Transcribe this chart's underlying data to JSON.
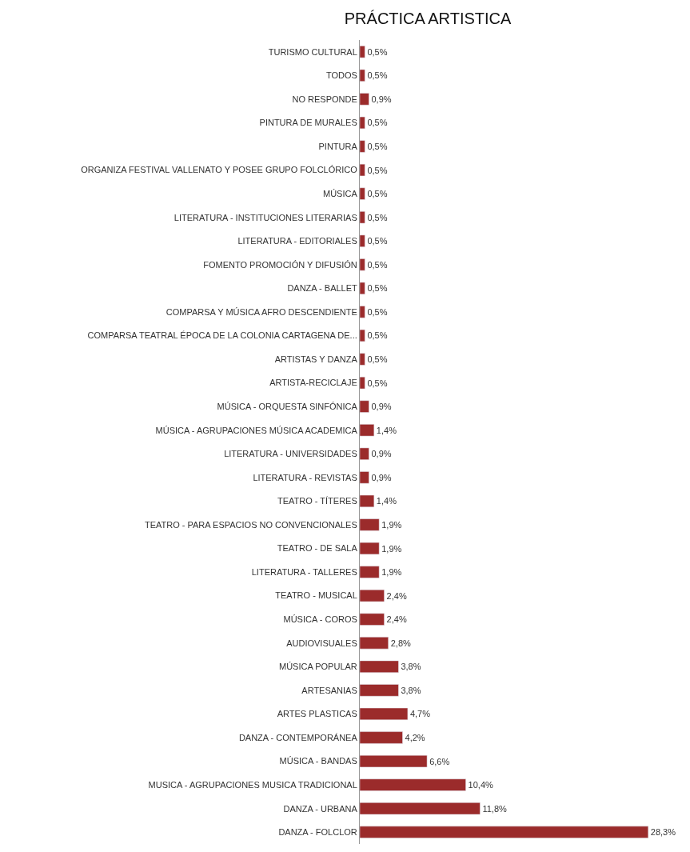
{
  "chart_data": {
    "type": "bar",
    "orientation": "horizontal",
    "title": "PRÁCTICA ARTISTICA",
    "categories": [
      "TURISMO CULTURAL",
      "TODOS",
      "NO RESPONDE",
      "PINTURA DE MURALES",
      "PINTURA",
      "ORGANIZA FESTIVAL VALLENATO Y POSEE GRUPO FOLCLÓRICO",
      "MÚSICA",
      "LITERATURA - INSTITUCIONES LITERARIAS",
      "LITERATURA - EDITORIALES",
      "FOMENTO PROMOCIÓN Y DIFUSIÓN",
      "DANZA - BALLET",
      "COMPARSA Y MÚSICA AFRO DESCENDIENTE",
      "COMPARSA TEATRAL ÉPOCA DE LA COLONIA CARTAGENA DE...",
      "ARTISTAS Y DANZA",
      "ARTISTA-RECICLAJE",
      "MÚSICA - ORQUESTA SINFÓNICA",
      "MÚSICA - AGRUPACIONES MÚSICA ACADEMICA",
      "LITERATURA - UNIVERSIDADES",
      "LITERATURA - REVISTAS",
      "TEATRO - TÍTERES",
      "TEATRO - PARA ESPACIOS NO CONVENCIONALES",
      "TEATRO - DE SALA",
      "LITERATURA - TALLERES",
      "TEATRO - MUSICAL",
      "MÚSICA - COROS",
      "AUDIOVISUALES",
      "MÚSICA POPULAR",
      "ARTESANIAS",
      "ARTES PLASTICAS",
      "DANZA - CONTEMPORÁNEA",
      "MÚSICA - BANDAS",
      "MUSICA - AGRUPACIONES MUSICA TRADICIONAL",
      "DANZA - URBANA",
      "DANZA - FOLCLOR"
    ],
    "values": [
      0.5,
      0.5,
      0.9,
      0.5,
      0.5,
      0.5,
      0.5,
      0.5,
      0.5,
      0.5,
      0.5,
      0.5,
      0.5,
      0.5,
      0.5,
      0.9,
      1.4,
      0.9,
      0.9,
      1.4,
      1.9,
      1.9,
      1.9,
      2.4,
      2.4,
      2.8,
      3.8,
      3.8,
      4.7,
      4.2,
      6.6,
      10.4,
      11.8,
      28.3
    ],
    "value_labels": [
      "0,5%",
      "0,5%",
      "0,9%",
      "0,5%",
      "0,5%",
      "0,5%",
      "0,5%",
      "0,5%",
      "0,5%",
      "0,5%",
      "0,5%",
      "0,5%",
      "0,5%",
      "0,5%",
      "0,5%",
      "0,9%",
      "1,4%",
      "0,9%",
      "0,9%",
      "1,4%",
      "1,9%",
      "1,9%",
      "1,9%",
      "2,4%",
      "2,4%",
      "2,8%",
      "3,8%",
      "3,8%",
      "4,7%",
      "4,2%",
      "6,6%",
      "10,4%",
      "11,8%",
      "28,3%"
    ],
    "color": "#9b2b2b",
    "tick_labels": "y"
  }
}
